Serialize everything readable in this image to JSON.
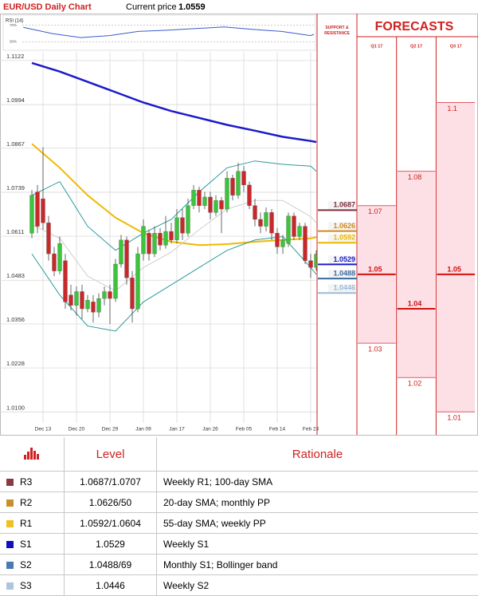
{
  "header": {
    "title": "EUR/USD Daily Chart",
    "price_label": "Current price",
    "price": 1.0559
  },
  "chart_data": [
    {
      "type": "candlestick",
      "xlim": [
        -1,
        52
      ],
      "xticks": [
        {
          "value": 2,
          "label": "Dec 13"
        },
        {
          "value": 8,
          "label": "Dec 20"
        },
        {
          "value": 14,
          "label": "Dec 29"
        },
        {
          "value": 20,
          "label": "Jan 09"
        },
        {
          "value": 26,
          "label": "Jan 17"
        },
        {
          "value": 32,
          "label": "Jan 26"
        },
        {
          "value": 38,
          "label": "Feb 05"
        },
        {
          "value": 44,
          "label": "Feb 14"
        },
        {
          "value": 50,
          "label": "Feb 23"
        }
      ],
      "ylim": [
        1.0045,
        1.1131
      ],
      "yticks": [
        {
          "value": 1.01,
          "label": "1.0100"
        },
        1.0228,
        1.0356,
        1.0483,
        1.0611,
        1.0739,
        1.0867,
        1.0994,
        1.1122
      ],
      "grid": true,
      "up_color": "#3cc43c",
      "down_color": "#c8282a",
      "open": [
        1.062,
        1.074,
        1.072,
        1.065,
        1.056,
        1.051,
        1.054,
        1.044,
        1.041,
        1.045,
        1.04,
        1.042,
        1.039,
        1.043,
        1.045,
        1.043,
        1.053,
        1.06,
        1.049,
        1.04,
        1.056,
        1.062,
        1.056,
        1.062,
        1.0585,
        1.0625,
        1.06,
        1.0665,
        1.062,
        1.07,
        1.0745,
        1.07,
        1.0725,
        1.068,
        1.0715,
        1.069,
        1.078,
        1.073,
        1.08,
        1.076,
        1.07,
        1.066,
        1.064,
        1.068,
        1.062,
        1.058,
        1.059,
        1.067,
        1.061,
        1.064,
        1.054,
        1.052
      ],
      "high": [
        1.0745,
        1.076,
        1.087,
        1.067,
        1.058,
        1.061,
        1.056,
        1.047,
        1.0465,
        1.047,
        1.044,
        1.044,
        1.0445,
        1.0465,
        1.047,
        1.0545,
        1.0615,
        1.061,
        1.051,
        1.058,
        1.066,
        1.063,
        1.064,
        1.0635,
        1.067,
        1.065,
        1.069,
        1.069,
        1.072,
        1.076,
        1.0755,
        1.074,
        1.074,
        1.073,
        1.0725,
        1.08,
        1.079,
        1.0825,
        1.0815,
        1.077,
        1.072,
        1.068,
        1.0695,
        1.069,
        1.0635,
        1.0615,
        1.068,
        1.068,
        1.065,
        1.065,
        1.056,
        1.057
      ],
      "low": [
        1.0605,
        1.062,
        1.063,
        1.054,
        1.0495,
        1.05,
        1.04,
        1.0395,
        1.038,
        1.037,
        1.039,
        1.036,
        1.0375,
        1.041,
        1.0356,
        1.042,
        1.052,
        1.047,
        1.036,
        1.039,
        1.054,
        1.054,
        1.055,
        1.057,
        1.0575,
        1.059,
        1.059,
        1.06,
        1.061,
        1.069,
        1.068,
        1.069,
        1.066,
        1.067,
        1.062,
        1.068,
        1.0715,
        1.072,
        1.074,
        1.069,
        1.064,
        1.062,
        1.0625,
        1.06,
        1.056,
        1.056,
        1.058,
        1.06,
        1.06,
        1.053,
        1.049,
        1.051
      ],
      "close": [
        1.073,
        1.064,
        1.065,
        1.056,
        1.051,
        1.059,
        1.042,
        1.041,
        1.045,
        1.04,
        1.0425,
        1.039,
        1.043,
        1.045,
        1.043,
        1.053,
        1.06,
        1.049,
        1.04,
        1.056,
        1.064,
        1.056,
        1.062,
        1.0585,
        1.0625,
        1.06,
        1.0665,
        1.062,
        1.07,
        1.0745,
        1.07,
        1.0725,
        1.068,
        1.0715,
        1.069,
        1.078,
        1.073,
        1.08,
        1.076,
        1.07,
        1.066,
        1.064,
        1.068,
        1.062,
        1.058,
        1.06,
        1.067,
        1.061,
        1.064,
        1.054,
        1.052,
        1.0559
      ],
      "series": [
        {
          "color": "#1a1acc",
          "width": 2.5,
          "x": [
            0,
            5,
            10,
            15,
            20,
            25,
            30,
            35,
            40,
            45,
            50,
            51
          ],
          "values": [
            1.1115,
            1.109,
            1.106,
            1.103,
            1.1,
            1.0975,
            1.0955,
            1.0935,
            1.0918,
            1.09,
            1.0888,
            1.0885
          ]
        },
        {
          "color": "#f0b800",
          "width": 2,
          "x": [
            0,
            5,
            10,
            15,
            20,
            25,
            30,
            35,
            40,
            45,
            50,
            51
          ],
          "values": [
            1.088,
            1.081,
            1.073,
            1.0665,
            1.062,
            1.0595,
            1.0585,
            1.0588,
            1.0595,
            1.06,
            1.0605,
            1.0608
          ]
        },
        {
          "color": "#cfcfcf",
          "width": 1,
          "x": [
            0,
            5,
            10,
            15,
            20,
            25,
            30,
            35,
            40,
            45,
            50,
            51
          ],
          "values": [
            1.0645,
            1.0605,
            1.0495,
            1.0452,
            1.052,
            1.0565,
            1.063,
            1.069,
            1.0715,
            1.0715,
            1.0668,
            1.065
          ]
        },
        {
          "color": "#2a9a9a",
          "width": 1,
          "x": [
            0,
            5,
            10,
            15,
            20,
            25,
            30,
            35,
            40,
            45,
            50,
            51
          ],
          "values": [
            1.073,
            1.077,
            1.064,
            1.057,
            1.062,
            1.066,
            1.074,
            1.081,
            1.083,
            1.082,
            1.0815,
            1.08
          ]
        },
        {
          "color": "#2a9a9a",
          "width": 1,
          "x": [
            0,
            5,
            10,
            15,
            20,
            25,
            30,
            35,
            40,
            45,
            50,
            51
          ],
          "values": [
            1.056,
            1.044,
            1.035,
            1.0335,
            1.042,
            1.047,
            1.052,
            1.057,
            1.06,
            1.061,
            1.052,
            1.05
          ]
        }
      ]
    },
    {
      "type": "line",
      "title": "RSI (14)",
      "color": "#3a5ccc",
      "xlim": [
        -1,
        52
      ],
      "ylim": [
        15,
        85
      ],
      "yticks": [
        {
          "value": 30,
          "label": "30%"
        },
        {
          "value": 70,
          "label": "70%"
        }
      ],
      "x": [
        0,
        5,
        10,
        15,
        20,
        25,
        30,
        35,
        40,
        45,
        50,
        51
      ],
      "values": [
        65,
        50,
        40,
        45,
        55,
        58,
        62,
        66,
        60,
        55,
        45,
        48
      ]
    }
  ],
  "support_resistance": {
    "title": "SUPPORT & RESISTANCE",
    "levels": [
      {
        "value": 1.0687,
        "color": "#7b2d3a"
      },
      {
        "value": 1.0626,
        "color": "#d08a20"
      },
      {
        "value": 1.0592,
        "color": "#e8b800"
      },
      {
        "value": 1.0529,
        "color": "#1a1acc"
      },
      {
        "value": 1.0488,
        "color": "#3a6aa0"
      },
      {
        "value": 1.0446,
        "color": "#9bbad6"
      }
    ]
  },
  "forecasts": {
    "title": "FORECASTS",
    "quarters": [
      {
        "name": "Q1 17",
        "high": 1.07,
        "mid": 1.05,
        "low": 1.03
      },
      {
        "name": "Q2 17",
        "high": 1.08,
        "mid": 1.04,
        "low": 1.02
      },
      {
        "name": "Q3 17",
        "high": 1.1,
        "mid": 1.05,
        "low": 1.01
      }
    ]
  },
  "table": {
    "headers": [
      "Level",
      "Rationale"
    ],
    "rows": [
      {
        "name": "R3",
        "color": "#8b3a44",
        "level": "1.0687/1.0707",
        "rationale": "Weekly R1; 100-day SMA"
      },
      {
        "name": "R2",
        "color": "#c8902a",
        "level": "1.0626/50",
        "rationale": "20-day SMA; monthly PP"
      },
      {
        "name": "R1",
        "color": "#f0c020",
        "level": "1.0592/1.0604",
        "rationale": "55-day SMA; weekly PP"
      },
      {
        "name": "S1",
        "color": "#1010c0",
        "level": "1.0529",
        "rationale": "Weekly S1"
      },
      {
        "name": "S2",
        "color": "#4a7ab0",
        "level": "1.0488/69",
        "rationale": "Monthly S1; Bollinger band"
      },
      {
        "name": "S3",
        "color": "#b0c4de",
        "level": "1.0446",
        "rationale": "Weekly S2"
      }
    ]
  }
}
